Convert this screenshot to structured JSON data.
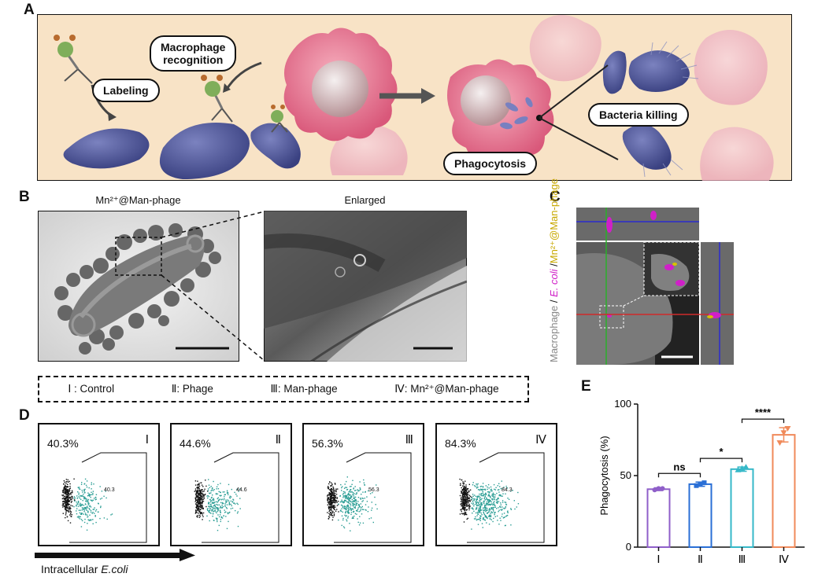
{
  "panels": {
    "A": {
      "letter": "A",
      "labels": {
        "labeling": "Labeling",
        "macrophage_recognition": "Macrophage\nrecognition",
        "phagocytosis": "Phagocytosis",
        "bacteria_killing": "Bacteria killing"
      }
    },
    "B": {
      "letter": "B",
      "left_title": "Mn²⁺@Man-phage",
      "right_title": "Enlarged"
    },
    "C": {
      "letter": "C",
      "vertical_label_parts": [
        "Macrophage",
        " / ",
        "E. coli",
        " /",
        "Mn²⁺@Man-phage"
      ]
    },
    "legend": {
      "items": [
        "Ⅰ : Control",
        "Ⅱ: Phage",
        "Ⅲ: Man-phage",
        "Ⅳ: Mn²⁺@Man-phage"
      ]
    },
    "D": {
      "letter": "D",
      "plots": [
        {
          "roman": "Ⅰ",
          "pct": "40.3%",
          "gate_value": "40.3"
        },
        {
          "roman": "Ⅱ",
          "pct": "44.6%",
          "gate_value": "44.6"
        },
        {
          "roman": "Ⅲ",
          "pct": "56.3%",
          "gate_value": "56.3"
        },
        {
          "roman": "Ⅳ",
          "pct": "84.3%",
          "gate_value": "84.3"
        }
      ],
      "x_label_prefix": "Intracellular ",
      "x_label_italic": "E.coli"
    },
    "E": {
      "letter": "E"
    }
  },
  "colors": {
    "bacteria": "#4e5590",
    "macrophage": "#e0728a",
    "background_tissue": "#f8e3c6",
    "dots": "#2a9d94",
    "magenta": "#d020c8",
    "yellow": "#d9c000"
  },
  "chart_data": {
    "type": "bar",
    "categories": [
      "Ⅰ",
      "Ⅱ",
      "Ⅲ",
      "Ⅳ"
    ],
    "values": [
      40.5,
      44.0,
      54.5,
      78.5
    ],
    "errors": [
      1.0,
      1.5,
      1.5,
      5.0
    ],
    "points": [
      [
        40,
        41,
        41
      ],
      [
        43,
        44,
        45
      ],
      [
        54,
        55,
        56
      ],
      [
        73,
        80,
        83
      ]
    ],
    "colors": [
      "#8f5fc9",
      "#2a6fd6",
      "#36b8c8",
      "#f08a5a"
    ],
    "ylabel": "Phagocytosis (%)",
    "ylim": [
      0,
      100
    ],
    "yticks": [
      0,
      50,
      100
    ],
    "significance": [
      {
        "from": 0,
        "to": 1,
        "label": "ns"
      },
      {
        "from": 1,
        "to": 2,
        "label": "*"
      },
      {
        "from": 2,
        "to": 3,
        "label": "****"
      }
    ]
  }
}
